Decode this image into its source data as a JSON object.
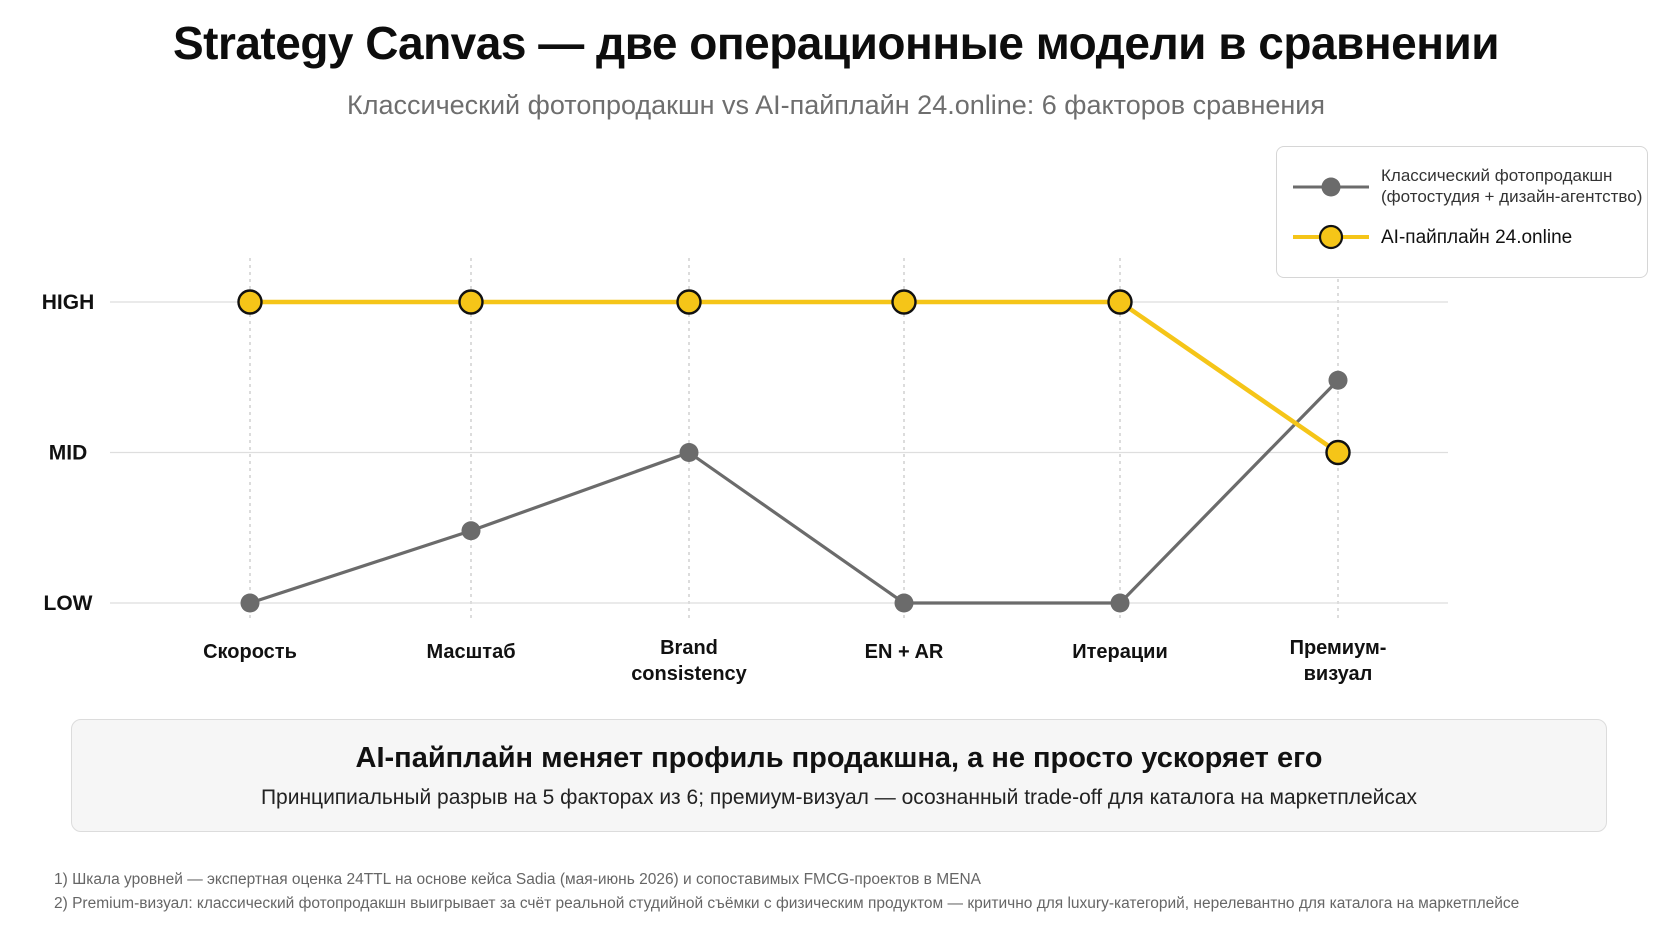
{
  "title": "Strategy Canvas — две операционные модели в сравнении",
  "subtitle": "Классический фотопродакшн vs AI-пайплайн 24.online: 6 факторов сравнения",
  "legend": {
    "classic_line1": "Классический фотопродакшн",
    "classic_line2": "(фотостудия + дизайн-агентство)",
    "ai": "AI-пайплайн 24.online"
  },
  "chart_data": {
    "type": "line",
    "categories": [
      [
        "Скорость"
      ],
      [
        "Масштаб"
      ],
      [
        "Brand",
        "consistency"
      ],
      [
        "EN + AR"
      ],
      [
        "Итерации"
      ],
      [
        "Премиум-",
        "визуал"
      ]
    ],
    "y_levels": [
      {
        "label": "LOW",
        "value": 0
      },
      {
        "label": "MID",
        "value": 1
      },
      {
        "label": "HIGH",
        "value": 2
      }
    ],
    "ylim": [
      0,
      2
    ],
    "grid": true,
    "legend_position": "top-right",
    "series": [
      {
        "key": "classic",
        "values": [
          0,
          0.48,
          1,
          0,
          0,
          1.48
        ],
        "color": "#6b6b6b"
      },
      {
        "key": "ai",
        "values": [
          2,
          2,
          2,
          2,
          2,
          1
        ],
        "color": "#f5c518"
      }
    ]
  },
  "callout": {
    "title": "AI-пайплайн меняет профиль продакшна, а не просто ускоряет его",
    "text": "Принципиальный разрыв на 5 факторах из 6; премиум-визуал — осознанный trade-off для каталога на маркетплейсах"
  },
  "footnotes": [
    "1) Шкала уровней — экспертная оценка 24TTL на основе кейса Sadia (мая-июнь 2026) и сопоставимых FMCG-проектов в MENA",
    "2) Premium-визуал: классический фотопродакшн выигрывает за счёт реальной студийной съёмки с физическим продуктом — критично для luxury-категорий, нерелевантно для каталога на маркетплейсе"
  ],
  "colors": {
    "classic": "#6b6b6b",
    "ai": "#f5c518",
    "ai_stroke": "#111111"
  }
}
